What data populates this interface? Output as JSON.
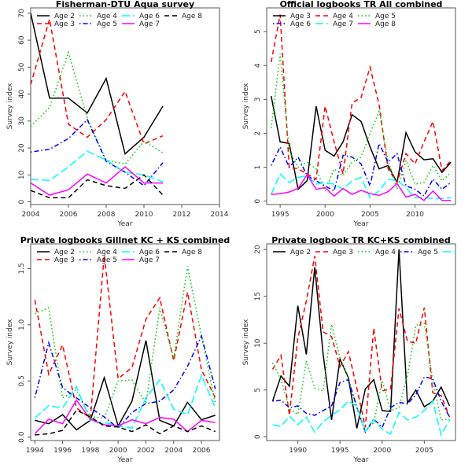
{
  "chart_data": [
    {
      "type": "line",
      "title": "Fisherman-DTU Aqua survey",
      "xlabel": "Year",
      "ylabel": "Survey index",
      "xlim": [
        2004,
        2014
      ],
      "ylim": [
        -1,
        72
      ],
      "xticks": [
        2004,
        2006,
        2008,
        2010,
        2012,
        2014
      ],
      "yticks": [
        0,
        10,
        20,
        30,
        40,
        50,
        60,
        70
      ],
      "x": [
        2004,
        2005,
        2006,
        2007,
        2008,
        2009,
        2010,
        2011
      ],
      "legend_cols": 4,
      "series": [
        {
          "name": "Age 2",
          "color": "#000000",
          "dash": "solid",
          "values": [
            70,
            38.5,
            38.5,
            33,
            45.8,
            17.8,
            24,
            35.5
          ]
        },
        {
          "name": "Age 3",
          "color": "#ff0000",
          "dash": "dashed",
          "values": [
            43.5,
            67.8,
            28.8,
            24,
            30.5,
            41,
            21.5,
            24.5
          ]
        },
        {
          "name": "Age 4",
          "color": "#00cd00",
          "dash": "dotted",
          "values": [
            28,
            35,
            55.5,
            31,
            15.5,
            14,
            22.5,
            18.2
          ]
        },
        {
          "name": "Age 5",
          "color": "#0000ff",
          "dash": "dotdash",
          "values": [
            18.5,
            19.5,
            23.5,
            30.5,
            15,
            11,
            6,
            14.5
          ]
        },
        {
          "name": "Age 6",
          "color": "#00ffff",
          "dash": "longdash",
          "values": [
            8.3,
            8,
            13,
            18.8,
            15.5,
            11,
            10,
            7.5
          ]
        },
        {
          "name": "Age 7",
          "color": "#ff00ff",
          "dash": "solid",
          "values": [
            7,
            2.5,
            4.5,
            10.3,
            7,
            13,
            7,
            7
          ]
        },
        {
          "name": "Age 8",
          "color": "#000000",
          "dash": "dashed",
          "values": [
            4.2,
            1.5,
            1.5,
            8.2,
            6,
            5,
            10,
            2.5
          ]
        }
      ]
    },
    {
      "type": "line",
      "title": "Official logbooks TR All combined",
      "xlabel": "Year",
      "ylabel": "Survey index",
      "xlim": [
        1993.5,
        2014.5
      ],
      "ylim": [
        -0.1,
        5.7
      ],
      "xticks": [
        1995,
        2000,
        2005,
        2010
      ],
      "yticks": [
        0,
        1,
        2,
        3,
        4,
        5
      ],
      "x": [
        1994,
        1995,
        1996,
        1997,
        1998,
        1999,
        2000,
        2001,
        2002,
        2003,
        2004,
        2005,
        2006,
        2007,
        2008,
        2009,
        2010,
        2011,
        2012,
        2013,
        2014
      ],
      "legend_cols": 3,
      "series": [
        {
          "name": "Age 3",
          "color": "#000000",
          "dash": "solid",
          "values": [
            3.1,
            1.75,
            1.7,
            0.35,
            0.6,
            2.8,
            1.5,
            1.33,
            1.75,
            2.55,
            2.35,
            1.6,
            0.95,
            1.05,
            0.55,
            2.02,
            1.45,
            1.22,
            1.25,
            0.85,
            1.15
          ]
        },
        {
          "name": "Age 4",
          "color": "#ff0000",
          "dash": "dashed",
          "values": [
            4.1,
            5.5,
            1.0,
            0.95,
            0.8,
            0.65,
            2.8,
            1.75,
            0.8,
            2.9,
            3.05,
            3.95,
            2.85,
            0.95,
            0.55,
            1.4,
            1.1,
            1.75,
            2.35,
            0.9,
            1.2
          ]
        },
        {
          "name": "Age 5",
          "color": "#00cd00",
          "dash": "dotted",
          "values": [
            2.15,
            4.35,
            1.5,
            1.0,
            1.15,
            0.95,
            0.3,
            0.95,
            0.75,
            1.15,
            1.3,
            2.0,
            2.65,
            1.2,
            0.35,
            1.2,
            0.5,
            0.55,
            1.05,
            0.6,
            0.85
          ]
        },
        {
          "name": "Age 6",
          "color": "#0000ff",
          "dash": "dotdash",
          "values": [
            1.05,
            1.6,
            1.0,
            1.3,
            0.75,
            0.6,
            0.45,
            0.3,
            1.35,
            1.3,
            1.1,
            0.45,
            1.7,
            1.15,
            1.4,
            0.45,
            0.35,
            0.15,
            0.65,
            0.35,
            0.55
          ]
        },
        {
          "name": "Age 7",
          "color": "#00ffff",
          "dash": "longdash",
          "values": [
            0.2,
            0.8,
            0.55,
            0.7,
            0.75,
            0.5,
            0.55,
            0.5,
            0.35,
            0.6,
            0.7,
            0.1,
            0.3,
            0.65,
            0.6,
            0.4,
            0.1,
            0.1,
            0.08,
            0.08,
            0.1
          ]
        },
        {
          "name": "Age 8",
          "color": "#ff00ff",
          "dash": "solid",
          "values": [
            0.2,
            0.22,
            0.27,
            0.38,
            0.78,
            0.35,
            0.4,
            0.15,
            0.37,
            0.2,
            0.32,
            0.22,
            0.17,
            0.28,
            0.52,
            0.12,
            0.2,
            0.02,
            0.3,
            0.02,
            0.02
          ]
        }
      ]
    },
    {
      "type": "line",
      "title": "Private logbooks Gillnet KC + KS combined",
      "xlabel": "Year",
      "ylabel": "Survey index",
      "xlim": [
        1993.7,
        2007.3
      ],
      "ylim": [
        -0.03,
        1.72
      ],
      "xticks": [
        1994,
        1996,
        1998,
        2000,
        2002,
        2004,
        2006
      ],
      "yticks": [
        0.0,
        0.5,
        1.0,
        1.5
      ],
      "ytick_labels": [
        "0.0",
        "0.5",
        "1.0",
        "1.5"
      ],
      "x": [
        1994,
        1995,
        1996,
        1997,
        1998,
        1999,
        2000,
        2001,
        2002,
        2003,
        2004,
        2005,
        2006,
        2007
      ],
      "legend_cols": 4,
      "series": [
        {
          "name": "Age 2",
          "color": "#000000",
          "dash": "solid",
          "values": [
            0.15,
            0.12,
            0.2,
            0.065,
            0.15,
            0.53,
            0.1,
            0.32,
            0.86,
            0.15,
            0.1,
            0.31,
            0.155,
            0.195
          ]
        },
        {
          "name": "Age 3",
          "color": "#ff0000",
          "dash": "dashed",
          "values": [
            1.22,
            0.56,
            0.82,
            0.26,
            0.17,
            1.62,
            0.52,
            0.62,
            1.05,
            1.24,
            0.68,
            1.29,
            0.6,
            0.35
          ]
        },
        {
          "name": "Age 4",
          "color": "#00cd00",
          "dash": "dotted",
          "values": [
            1.1,
            1.15,
            0.35,
            0.42,
            0.18,
            0.17,
            0.5,
            0.51,
            0.3,
            1.15,
            0.7,
            1.52,
            0.9,
            0.3
          ]
        },
        {
          "name": "Age 5",
          "color": "#0000ff",
          "dash": "dotdash",
          "values": [
            0.35,
            0.84,
            0.44,
            0.35,
            0.26,
            0.18,
            0.08,
            0.22,
            0.3,
            0.32,
            0.42,
            0.63,
            0.9,
            0.43
          ]
        },
        {
          "name": "Age 6",
          "color": "#00ffff",
          "dash": "longdash",
          "values": [
            0.17,
            0.28,
            0.26,
            0.45,
            0.14,
            0.13,
            0.1,
            0.08,
            0.35,
            0.51,
            0.25,
            0.2,
            0.55,
            0.26
          ]
        },
        {
          "name": "Age 7",
          "color": "#ff00ff",
          "dash": "solid",
          "values": [
            0.03,
            0.16,
            0.12,
            0.33,
            0.16,
            0.11,
            0.1,
            0.155,
            0.12,
            0.175,
            0.16,
            0.05,
            0.15,
            0.13
          ]
        },
        {
          "name": "Age 8",
          "color": "#000000",
          "dash": "dashed",
          "values": [
            0.02,
            0.03,
            0.06,
            0.24,
            0.18,
            0.1,
            0.09,
            0.05,
            0.11,
            0.03,
            0.1,
            0.05,
            0.1,
            0.05
          ]
        }
      ]
    },
    {
      "type": "line",
      "title": "Private logbook TR KC+KS combined",
      "xlabel": "Year",
      "ylabel": "Survey index",
      "xlim": [
        1986.3,
        2008.7
      ],
      "ylim": [
        -0.4,
        20.6
      ],
      "xticks": [
        1990,
        1995,
        2000,
        2005
      ],
      "yticks": [
        0,
        5,
        10,
        15,
        20
      ],
      "x": [
        1987,
        1988,
        1989,
        1990,
        1991,
        1992,
        1993,
        1994,
        1995,
        1996,
        1997,
        1998,
        1999,
        2000,
        2001,
        2002,
        2003,
        2004,
        2005,
        2006,
        2007,
        2008
      ],
      "legend_cols": 5,
      "legend_visible_count": 5,
      "series": [
        {
          "name": "Age 2",
          "color": "#000000",
          "dash": "solid",
          "values": [
            3.8,
            6.5,
            5.4,
            14,
            8.8,
            18.1,
            8.8,
            1.8,
            8.3,
            6.3,
            0.9,
            5.1,
            6.1,
            2.8,
            2.7,
            20,
            3.6,
            5,
            3.2,
            3.8,
            5.3,
            3.3
          ]
        },
        {
          "name": "Age 3",
          "color": "#ff0000",
          "dash": "dashed",
          "values": [
            7.2,
            8.7,
            2.3,
            10.5,
            14.5,
            19.3,
            11.2,
            10.7,
            7.5,
            9.1,
            5.2,
            1.0,
            11.6,
            4.9,
            5.1,
            13.7,
            10.2,
            10,
            13.8,
            4.7,
            4.4,
            2.1
          ]
        },
        {
          "name": "Age 4",
          "color": "#00cd00",
          "dash": "dotted",
          "values": [
            7.9,
            6.1,
            3.0,
            2.4,
            8.1,
            5.2,
            4.9,
            12,
            8.4,
            6.2,
            3.0,
            0.6,
            1.5,
            6.0,
            2.8,
            3.1,
            6.5,
            11.9,
            12.1,
            6.0,
            1.8,
            1.9
          ]
        },
        {
          "name": "Age 5",
          "color": "#0000ff",
          "dash": "dotdash",
          "values": [
            3.8,
            3.9,
            3.1,
            3.3,
            2.5,
            2.3,
            2.8,
            3.3,
            5.8,
            6.1,
            3.2,
            0.5,
            1.9,
            1.0,
            3.1,
            3.7,
            3.5,
            4.5,
            6.4,
            6.2,
            3.8,
            2.1
          ]
        },
        {
          "name": "",
          "color": "#00ffff",
          "dash": "longdash",
          "values": [
            1.3,
            1.1,
            2.2,
            1.3,
            2.1,
            0.5,
            1.6,
            2.3,
            2.9,
            3.8,
            3.3,
            0.6,
            1.8,
            0.8,
            0.3,
            2.6,
            1.8,
            2.1,
            2.8,
            3.8,
            0.2,
            1.8
          ]
        }
      ]
    }
  ]
}
